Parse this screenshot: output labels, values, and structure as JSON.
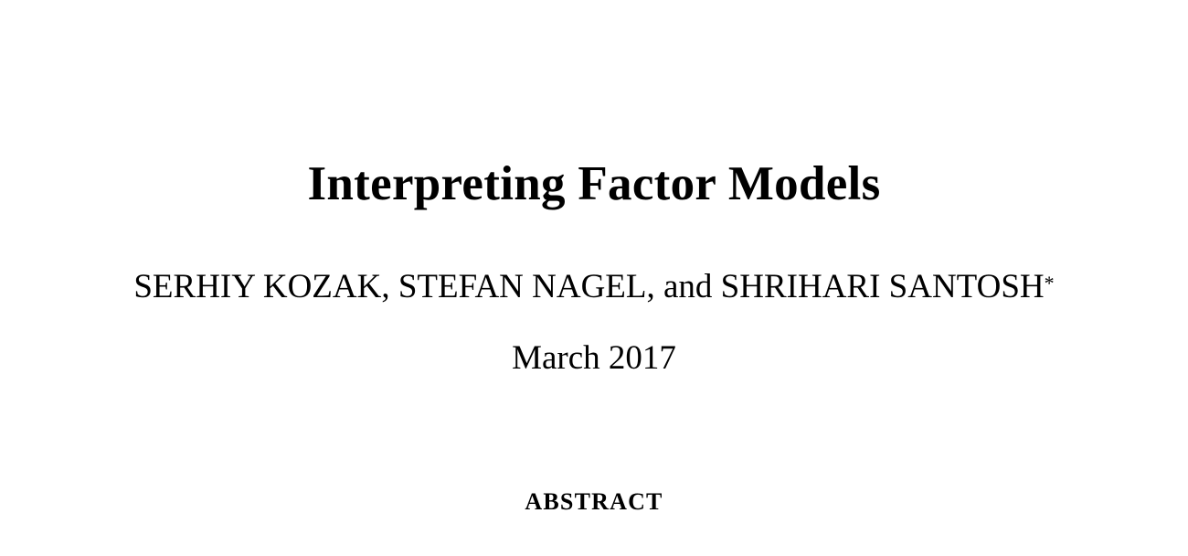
{
  "paper": {
    "title": "Interpreting Factor Models",
    "authors": "SERHIY KOZAK, STEFAN NAGEL, and SHRIHARI SANTOSH",
    "author_footnote_mark": "*",
    "date": "March 2017",
    "abstract_heading": "ABSTRACT"
  }
}
